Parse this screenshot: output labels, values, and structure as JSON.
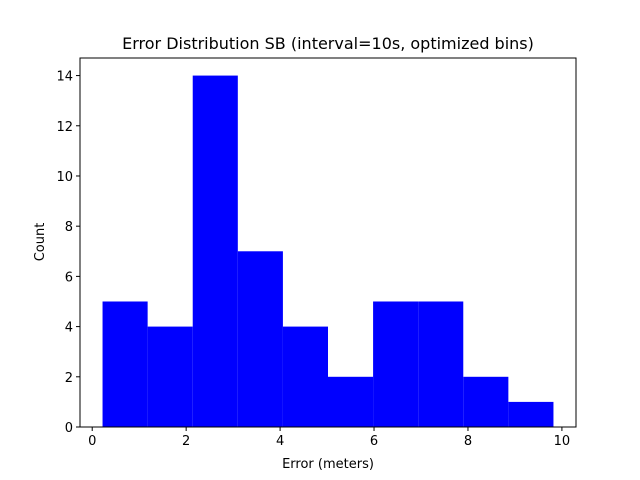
{
  "chart_data": {
    "type": "bar",
    "title": "Error Distribution SB (interval=10s, optimized bins)",
    "xlabel": "Error (meters)",
    "ylabel": "Count",
    "bins": [
      {
        "x0": 0.22,
        "x1": 1.18,
        "count": 5
      },
      {
        "x0": 1.18,
        "x1": 2.14,
        "count": 4
      },
      {
        "x0": 2.14,
        "x1": 3.1,
        "count": 14
      },
      {
        "x0": 3.1,
        "x1": 4.06,
        "count": 7
      },
      {
        "x0": 4.06,
        "x1": 5.02,
        "count": 4
      },
      {
        "x0": 5.02,
        "x1": 5.98,
        "count": 2
      },
      {
        "x0": 5.98,
        "x1": 6.94,
        "count": 5
      },
      {
        "x0": 6.94,
        "x1": 7.9,
        "count": 5
      },
      {
        "x0": 7.9,
        "x1": 8.86,
        "count": 2
      },
      {
        "x0": 8.86,
        "x1": 9.82,
        "count": 1
      }
    ],
    "xlim": [
      -0.26,
      10.3
    ],
    "ylim": [
      0,
      14.7
    ],
    "xticks": [
      0,
      2,
      4,
      6,
      8,
      10
    ],
    "yticks": [
      0,
      2,
      4,
      6,
      8,
      10,
      12,
      14
    ],
    "bar_color": "#0000ff",
    "grid": false,
    "legend": "none"
  }
}
